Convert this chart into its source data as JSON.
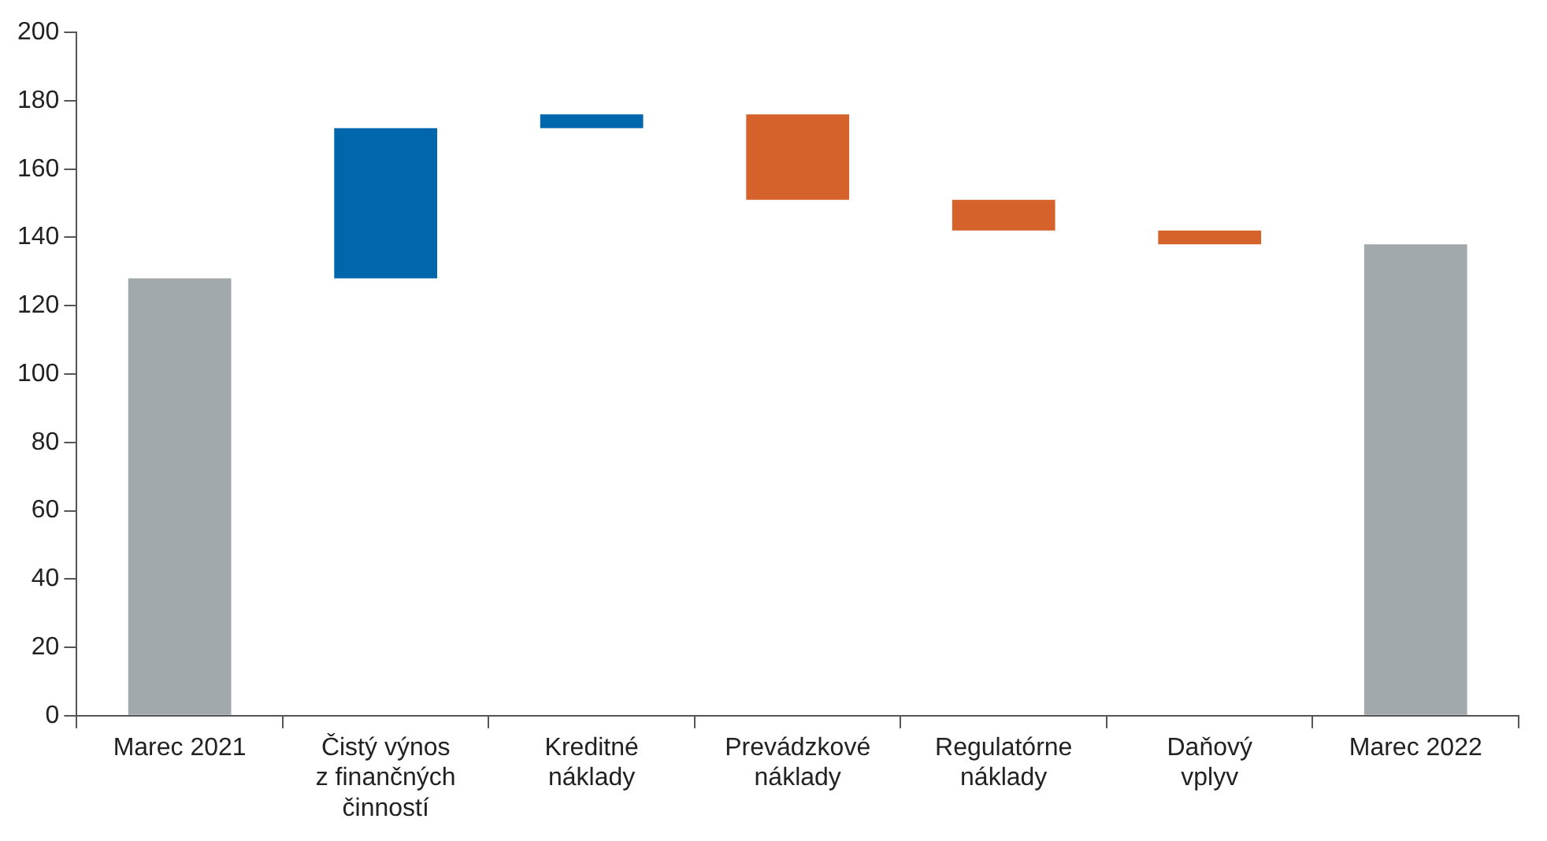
{
  "chart_data": {
    "type": "bar",
    "categories": [
      "Marec 2021",
      "Čistý výnos z finančných činností",
      "Kreditné náklady",
      "Prevádzkové náklady",
      "Regulatórne náklady",
      "Daňový vplyv",
      "Marec 2022"
    ],
    "values": [
      128,
      44,
      4,
      -25,
      -9,
      -4,
      138
    ],
    "base": [
      0,
      128,
      172,
      176,
      151,
      142,
      0
    ],
    "colors": [
      "#a2a9ad",
      "#0067ac",
      "#0067ac",
      "#d4622a",
      "#d4622a",
      "#d4622a",
      "#a2a9ad"
    ],
    "ylim": [
      0,
      200
    ],
    "yticks": [
      0,
      20,
      40,
      60,
      80,
      100,
      120,
      140,
      160,
      180,
      200
    ],
    "grid": false,
    "legend": false
  }
}
